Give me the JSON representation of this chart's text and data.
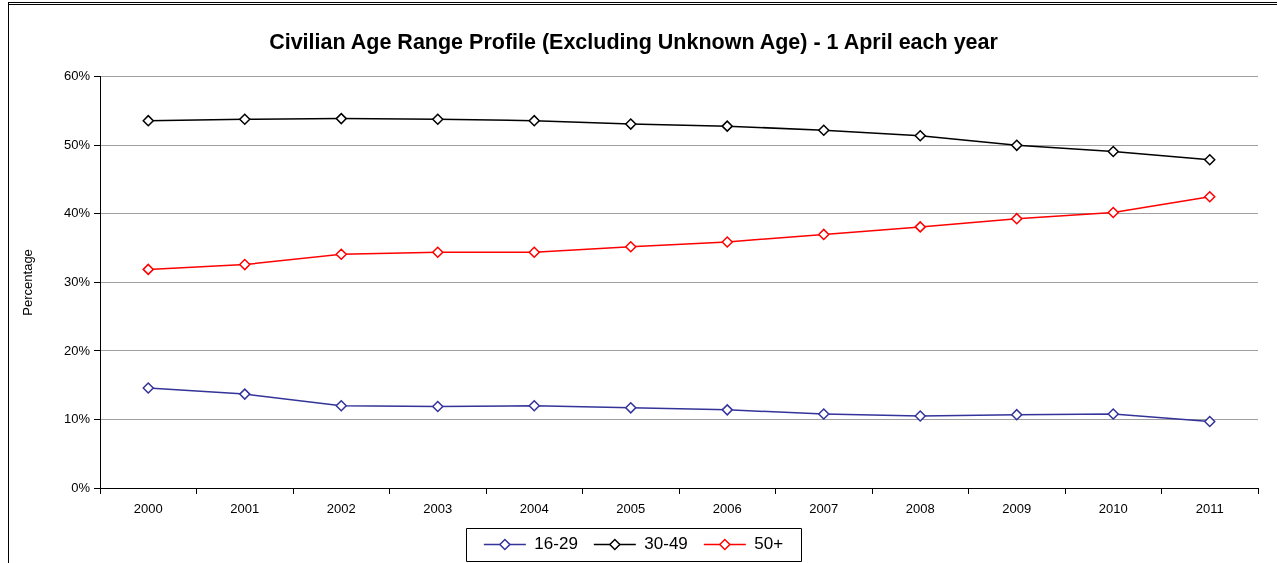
{
  "chart_data": {
    "type": "line",
    "title": "Civilian Age Range Profile (Excluding Unknown Age) - 1 April each year",
    "ylabel": "Percentage",
    "categories": [
      "2000",
      "2001",
      "2002",
      "2003",
      "2004",
      "2005",
      "2006",
      "2007",
      "2008",
      "2009",
      "2010",
      "2011"
    ],
    "series": [
      {
        "name": "16-29",
        "color": "#333399",
        "values": [
          14.6,
          13.7,
          12.0,
          11.9,
          12.0,
          11.7,
          11.4,
          10.8,
          10.5,
          10.7,
          10.8,
          9.7
        ]
      },
      {
        "name": "30-49",
        "color": "#000000",
        "values": [
          53.6,
          53.8,
          53.9,
          53.8,
          53.6,
          53.1,
          52.8,
          52.2,
          51.4,
          50.0,
          49.1,
          47.9
        ]
      },
      {
        "name": "50+",
        "color": "#ff0000",
        "values": [
          31.9,
          32.6,
          34.1,
          34.4,
          34.4,
          35.2,
          35.9,
          37.0,
          38.1,
          39.3,
          40.2,
          42.5
        ]
      }
    ],
    "ylim": [
      0,
      60
    ],
    "yticks": [
      {
        "value": 0,
        "label": "0%"
      },
      {
        "value": 10,
        "label": "10%"
      },
      {
        "value": 20,
        "label": "20%"
      },
      {
        "value": 30,
        "label": "30%"
      },
      {
        "value": 40,
        "label": "40%"
      },
      {
        "value": 50,
        "label": "50%"
      },
      {
        "value": 60,
        "label": "60%"
      }
    ],
    "grid": "y",
    "legend": "bottom",
    "marker": "diamond",
    "line_style": "solid"
  }
}
